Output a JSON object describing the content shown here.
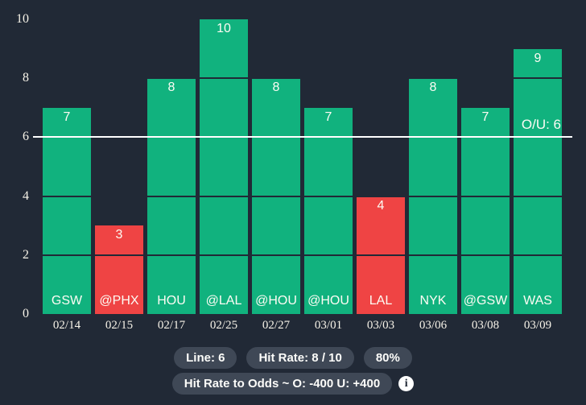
{
  "chart_data": {
    "type": "bar",
    "title": "",
    "ylim": [
      0,
      10
    ],
    "y_ticks": [
      0,
      2,
      4,
      6,
      8,
      10
    ],
    "grid": true,
    "reference_line": {
      "value": 6,
      "label": "O/U: 6"
    },
    "categories": [
      "GSW",
      "@PHX",
      "HOU",
      "@LAL",
      "@HOU",
      "@HOU",
      "LAL",
      "NYK",
      "@GSW",
      "WAS"
    ],
    "values": [
      7,
      3,
      8,
      10,
      8,
      7,
      4,
      8,
      7,
      9
    ],
    "games": [
      {
        "team": "GSW",
        "date": "02/14",
        "value": 7,
        "result": "hit"
      },
      {
        "team": "@PHX",
        "date": "02/15",
        "value": 3,
        "result": "miss"
      },
      {
        "team": "HOU",
        "date": "02/17",
        "value": 8,
        "result": "hit"
      },
      {
        "team": "@LAL",
        "date": "02/25",
        "value": 10,
        "result": "hit"
      },
      {
        "team": "@HOU",
        "date": "02/27",
        "value": 8,
        "result": "hit"
      },
      {
        "team": "@HOU",
        "date": "03/01",
        "value": 7,
        "result": "hit"
      },
      {
        "team": "LAL",
        "date": "03/03",
        "value": 4,
        "result": "miss"
      },
      {
        "team": "NYK",
        "date": "03/06",
        "value": 8,
        "result": "hit"
      },
      {
        "team": "@GSW",
        "date": "03/08",
        "value": 7,
        "result": "hit"
      },
      {
        "team": "WAS",
        "date": "03/09",
        "value": 9,
        "result": "hit"
      }
    ]
  },
  "colors": {
    "background": "#212936",
    "hit": "#11b27e",
    "miss": "#ef4444",
    "reference_line": "#ffffff",
    "pill_background": "#3f4856"
  },
  "footer": {
    "line_pill": "Line: 6",
    "hit_rate_pill": "Hit Rate: 8 / 10",
    "percent_pill": "80%",
    "odds_pill": "Hit Rate to Odds ~ O: -400 U: +400",
    "info_icon_glyph": "i"
  }
}
